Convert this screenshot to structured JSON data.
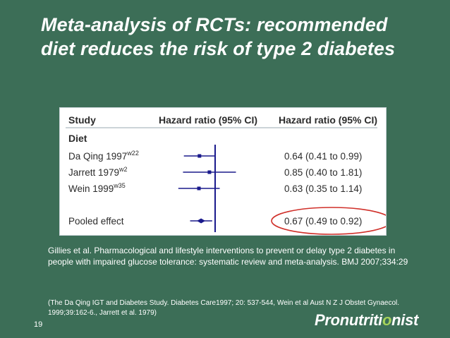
{
  "slide": {
    "title_line1": "Meta-analysis of RCTs: recommended",
    "title_line2": "diet reduces the risk of type 2 diabetes",
    "citation": "Gillies et al. Pharmacological and lifestyle interventions to prevent or delay type 2 diabetes in people with impaired glucose tolerance: systematic review and meta-analysis. BMJ 2007;334:29",
    "references": "(The Da Qing IGT and Diabetes Study. Diabetes Care1997; 20: 537-544, Wein et al Aust N Z J Obstet Gynaecol. 1999;39:162-6., Jarrett et al. 1979)",
    "number": "19",
    "logo_pre": "Pronutriti",
    "logo_accent": "o",
    "logo_post": "nist"
  },
  "chart_data": {
    "type": "forest",
    "headers": {
      "study": "Study",
      "plot": "Hazard ratio (95% CI)",
      "values": "Hazard ratio (95% CI)"
    },
    "group_label": "Diet",
    "null_value": 1,
    "xlim": [
      0.2,
      5
    ],
    "scale": "log",
    "studies": [
      {
        "name": "Da Qing 1997",
        "sup": "w22",
        "hr": 0.64,
        "lo": 0.41,
        "hi": 0.99,
        "text": "0.64 (0.41 to 0.99)"
      },
      {
        "name": "Jarrett 1979",
        "sup": "w2",
        "hr": 0.85,
        "lo": 0.4,
        "hi": 1.81,
        "text": "0.85 (0.40 to 1.81)"
      },
      {
        "name": "Wein 1999",
        "sup": "w35",
        "hr": 0.63,
        "lo": 0.35,
        "hi": 1.14,
        "text": "0.63 (0.35 to 1.14)"
      }
    ],
    "pooled": {
      "name": "Pooled effect",
      "hr": 0.67,
      "lo": 0.49,
      "hi": 0.92,
      "text": "0.67 (0.49 to 0.92)"
    },
    "highlight": "pooled",
    "colors": {
      "ci": "#1a1a8c",
      "null_line": "#1a1a8c",
      "text": "#2b2b2b",
      "highlight": "#d0302a"
    }
  }
}
